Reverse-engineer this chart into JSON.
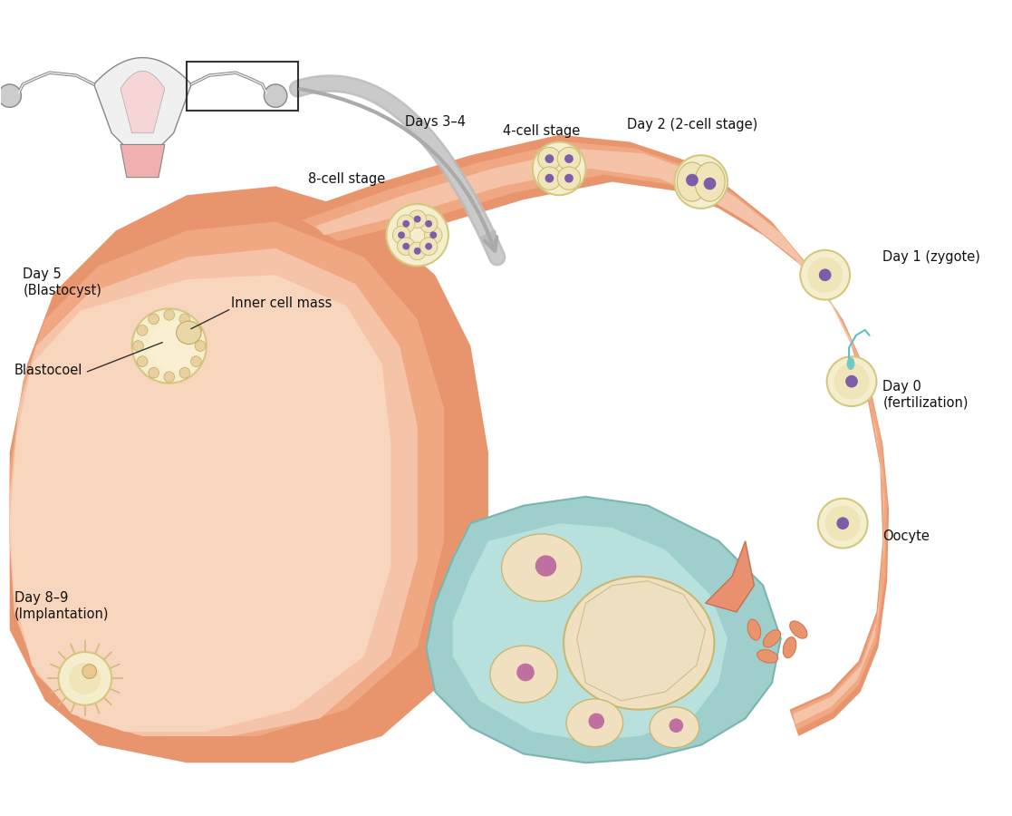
{
  "bg_color": "#ffffff",
  "uterus_wall_color": "#e8a090",
  "uterus_inner_color": "#f5c5b0",
  "uterus_muscle_color": "#d4806a",
  "tube_outer_color": "#e8a090",
  "tube_inner_color": "#f5c5b0",
  "ovary_bg_color": "#b8d8d8",
  "cell_outer_color": "#f0e8c8",
  "cell_ring_color": "#c8b870",
  "cell_nucleus_color": "#7b5ea7",
  "labels": {
    "days_34": "Days 3–4",
    "cell4_stage": "4-cell stage",
    "day2_2cell": "Day 2 (2-cell stage)",
    "cell8_stage": "8-cell stage",
    "day1_zygote": "Day 1 (zygote)",
    "day5_blast": "Day 5\n(Blastocyst)",
    "inner_cell_mass": "Inner cell mass",
    "blastocoel": "Blastocoel",
    "day89_imp": "Day 8–9\n(Implantation)",
    "day0_fert": "Day 0\n(fertilization)",
    "oocyte": "Oocyte"
  },
  "arrow_color": "#aaaaaa",
  "line_color": "#333333",
  "small_uterus_color": "#dddddd",
  "small_uterus_inner": "#f0d0d0"
}
